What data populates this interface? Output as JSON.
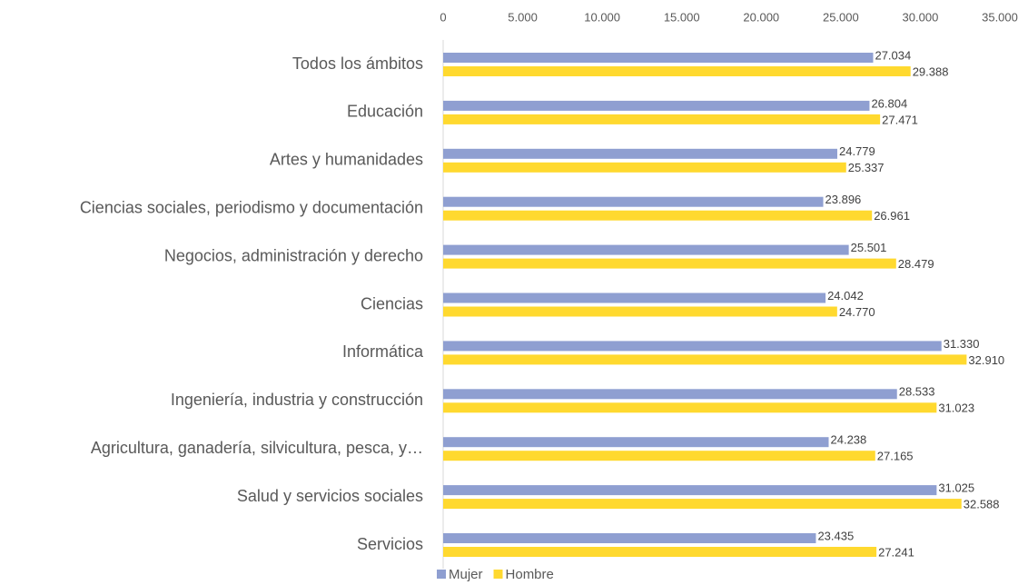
{
  "chart_data": {
    "type": "bar",
    "orientation": "horizontal",
    "categories": [
      "Todos los ámbitos",
      "Educación",
      "Artes y humanidades",
      "Ciencias sociales, periodismo y documentación",
      "Negocios, administración y derecho",
      "Ciencias",
      "Informática",
      "Ingeniería, industria y construcción",
      "Agricultura, ganadería, silvicultura, pesca, y…",
      "Salud y servicios sociales",
      "Servicios"
    ],
    "series": [
      {
        "name": "Mujer",
        "color": "#8f9fd1",
        "values": [
          27034,
          26804,
          24779,
          23896,
          25501,
          24042,
          31330,
          28533,
          24238,
          31025,
          23435
        ],
        "value_labels": [
          "27.034",
          "26.804",
          "24.779",
          "23.896",
          "25.501",
          "24.042",
          "31.330",
          "28.533",
          "24.238",
          "31.025",
          "23.435"
        ]
      },
      {
        "name": "Hombre",
        "color": "#ffd92f",
        "values": [
          29388,
          27471,
          25337,
          26961,
          28479,
          24770,
          32910,
          31023,
          27165,
          32588,
          27241
        ],
        "value_labels": [
          "29.388",
          "27.471",
          "25.337",
          "26.961",
          "28.479",
          "24.770",
          "32.910",
          "31.023",
          "27.165",
          "32.588",
          "27.241"
        ]
      }
    ],
    "xlim": [
      0,
      35000
    ],
    "xticks": [
      0,
      {
        "value": 5000,
        "label": "5.000"
      },
      {
        "value": 10000,
        "label": "10.000"
      },
      {
        "value": 15000,
        "label": "15.000"
      },
      {
        "value": 20000,
        "label": "20.000"
      },
      {
        "value": 25000,
        "label": "25.000"
      },
      {
        "value": 30000,
        "label": "30.000"
      },
      {
        "value": 35000,
        "label": "35.000"
      }
    ],
    "legend": "bottom"
  }
}
